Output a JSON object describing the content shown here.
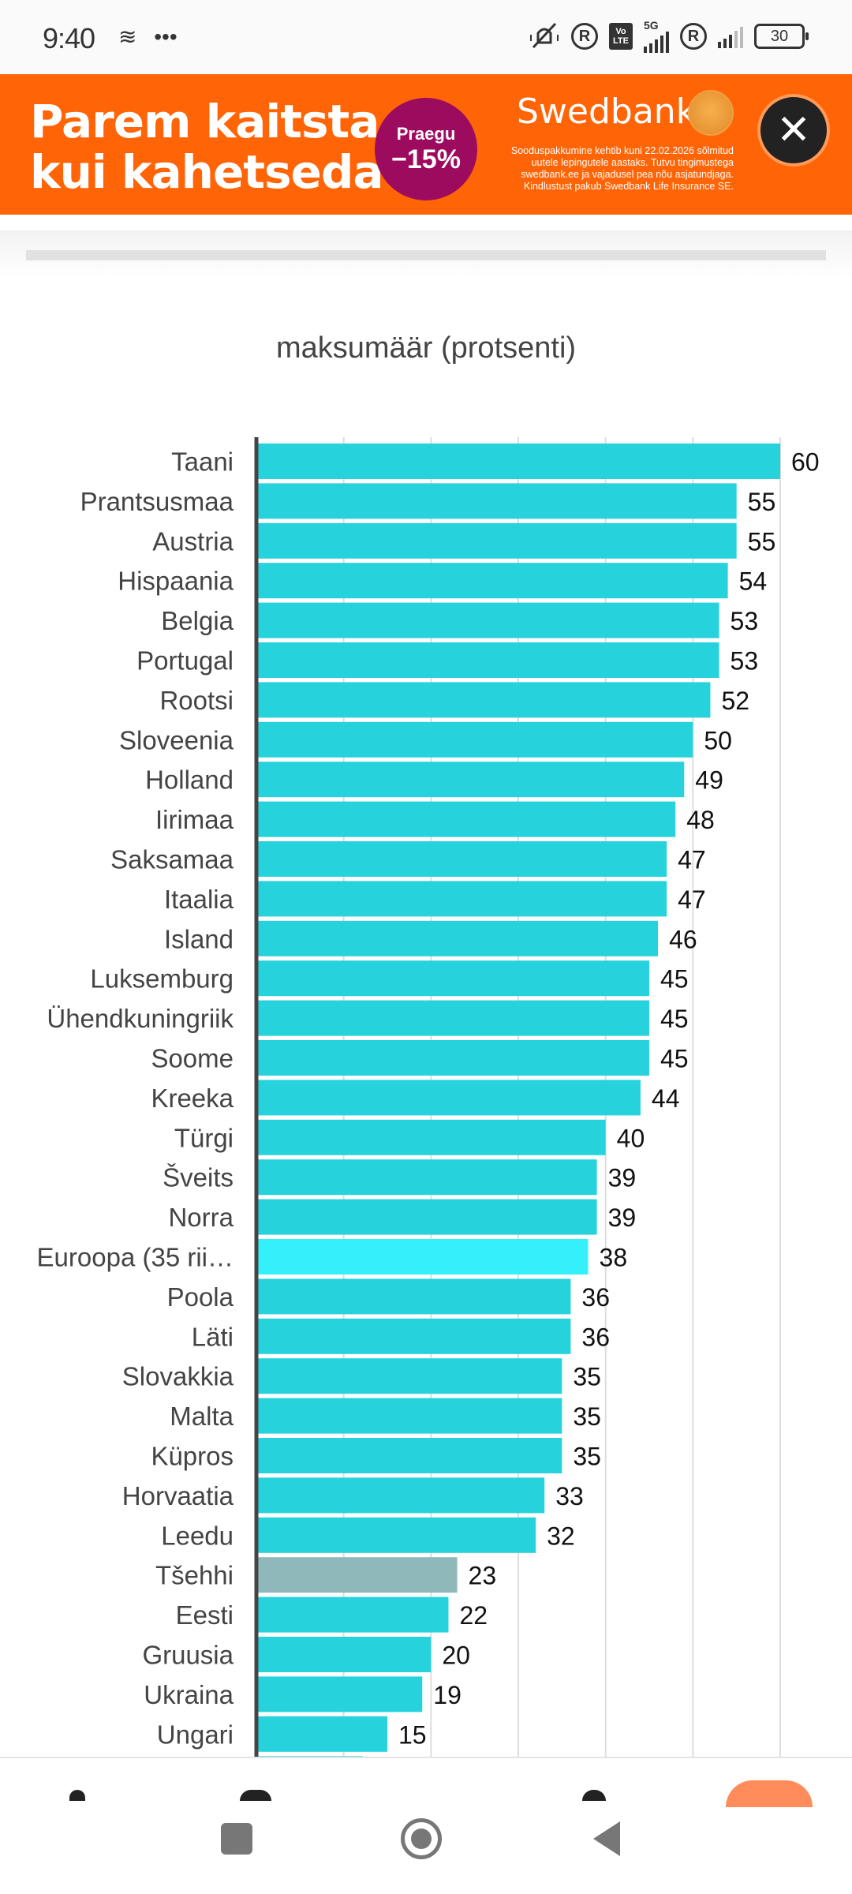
{
  "status_bar": {
    "time": "9:40",
    "left_icons": [
      "layers-icon",
      "more-dots-icon"
    ],
    "right_icons": [
      "vibrate-off-icon",
      "roaming-r-icon",
      "volte-icon",
      "5g-signal-icon",
      "roaming-r-icon",
      "signal-icon",
      "battery-icon"
    ],
    "network": "5G",
    "volte_top": "Vo",
    "volte_bottom": "LTE",
    "roaming": "R",
    "battery": "30"
  },
  "ad": {
    "headline_line1": "Parem kaitsta",
    "headline_line2": "kui kahetseda",
    "badge_top": "Praegu",
    "badge_bottom": "−15%",
    "brand": "Swedbank",
    "fine_print": "Sooduspakkumine kehtib kuni 22.02.2026 sõlmitud uutele lepingutele aastaks. Tutvu tingimustega swedbank.ee ja vajadusel pea nõu asjatundjaga. Kindlustust pakub Swedbank Life Insurance SE.",
    "close_label": "✕",
    "colors": {
      "background": "#ff6406",
      "badge": "#9c0b5e",
      "close": "#222222"
    }
  },
  "chart_data": {
    "type": "bar",
    "orientation": "horizontal",
    "title": "maksumäär (protsenti)",
    "xlabel": "",
    "ylabel": "",
    "xlim": [
      0,
      60
    ],
    "gridlines": [
      0,
      10,
      20,
      30,
      40,
      50,
      60
    ],
    "grid": true,
    "data_labels": true,
    "categories": [
      "Taani",
      "Prantsusmaa",
      "Austria",
      "Hispaania",
      "Belgia",
      "Portugal",
      "Rootsi",
      "Sloveenia",
      "Holland",
      "Iirimaa",
      "Saksamaa",
      "Itaalia",
      "Island",
      "Luksemburg",
      "Ühendkuningriik",
      "Soome",
      "Kreeka",
      "Türgi",
      "Šveits",
      "Norra",
      "Euroopa (35 rii…",
      "Poola",
      "Läti",
      "Slovakkia",
      "Malta",
      "Küpros",
      "Horvaatia",
      "Leedu",
      "Tšehhi",
      "Eesti",
      "Gruusia",
      "Ukraina",
      "Ungari"
    ],
    "values": [
      60,
      55,
      55,
      54,
      53,
      53,
      52,
      50,
      49,
      48,
      47,
      47,
      46,
      45,
      45,
      45,
      44,
      40,
      39,
      39,
      38,
      36,
      36,
      35,
      35,
      35,
      33,
      32,
      23,
      22,
      20,
      19,
      15
    ],
    "highlight": {
      "Euroopa (35 rii…": "#33f0fa",
      "Tšehhi": "#8fb8ba"
    },
    "partial_next_value_visible": true,
    "colors": {
      "bar": "#26d3dc",
      "axis": "#444444",
      "grid": "#dddddd"
    }
  },
  "bottom_toolbar": {
    "icons": [
      "home-icon",
      "tabs-icon",
      "account-icon",
      "action-button"
    ]
  },
  "nav_bar": {
    "buttons": [
      "recent-apps-button",
      "home-button",
      "back-button"
    ]
  }
}
